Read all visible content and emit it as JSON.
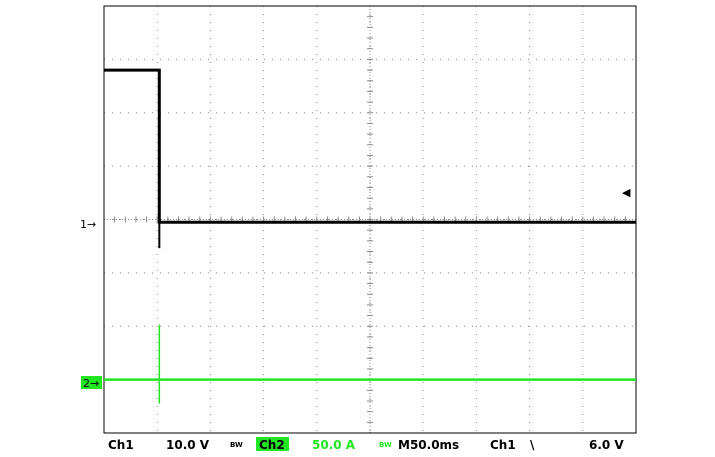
{
  "colors": {
    "background": "#ffffff",
    "frame": "#000000",
    "grid": "#888888",
    "ch1": "#000000",
    "ch2": "#22e622"
  },
  "chart_data": {
    "type": "line",
    "title": "",
    "xlabel": "",
    "ylabel": "",
    "grid": true,
    "x_divisions": 10,
    "y_divisions": 8,
    "x_unit": "ms",
    "timebase_ms_per_div": 50,
    "xlim": [
      0,
      500
    ],
    "ylim_div": [
      -4,
      4
    ],
    "series": [
      {
        "name": "Ch1",
        "color": "#000000",
        "scale_per_div": "10.0 V",
        "ground_div": -0.05,
        "points": [
          {
            "x": 0,
            "y": 2.8
          },
          {
            "x": 52,
            "y": 2.8
          },
          {
            "x": 52,
            "y": -0.05
          },
          {
            "x": 500,
            "y": -0.05
          }
        ]
      },
      {
        "name": "Ch2",
        "color": "#22e622",
        "scale_per_div": "50.0 A",
        "ground_div": -3.0,
        "points": [
          {
            "x": 0,
            "y": -3.0
          },
          {
            "x": 500,
            "y": -3.0
          }
        ]
      }
    ],
    "trigger": {
      "source": "Ch1",
      "slope": "falling",
      "level": "6.0 V"
    }
  },
  "markers": {
    "ch1": "1",
    "ch2": "2",
    "arrow": "→",
    "trigger_level_glyph": "◀"
  },
  "status": {
    "ch1_label": "Ch1",
    "ch1_scale": "10.0 V",
    "bw1": "BW",
    "ch2_label": "Ch2",
    "ch2_scale": "50.0 A",
    "bw2": "BW",
    "timebase": "M50.0ms",
    "trig_source": "Ch1",
    "trig_slope": "\\",
    "trig_level": "6.0 V"
  }
}
